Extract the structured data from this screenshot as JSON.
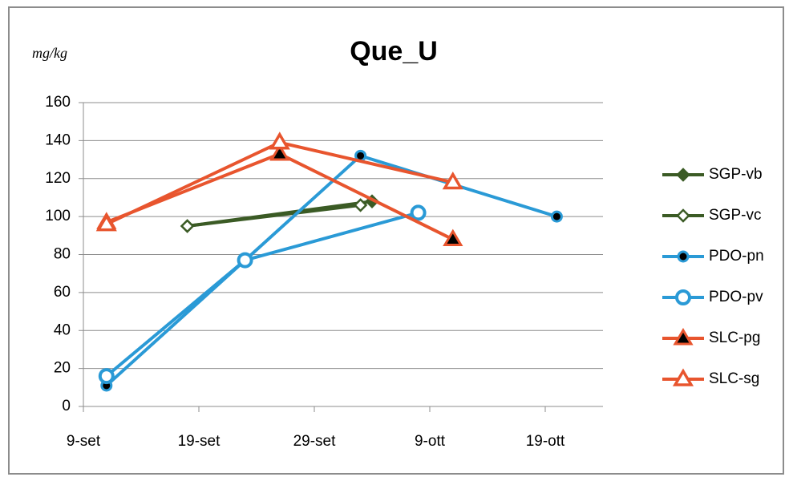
{
  "chart_data": {
    "type": "line",
    "title": "Que_U",
    "y_label": "mg/kg",
    "xlim": [
      9,
      54
    ],
    "xticks": [
      {
        "value": 9,
        "label": "9-set"
      },
      {
        "value": 19,
        "label": "19-set"
      },
      {
        "value": 29,
        "label": "29-set"
      },
      {
        "value": 39,
        "label": "9-ott"
      },
      {
        "value": 49,
        "label": "19-ott"
      }
    ],
    "ylim": [
      0,
      160
    ],
    "yticks": [
      0,
      20,
      40,
      60,
      80,
      100,
      120,
      140,
      160
    ],
    "grid": true,
    "legend": "right",
    "series": [
      {
        "name": "SGP-vb",
        "color": "#3b5b25",
        "marker": "diamond",
        "filled": true,
        "x": [
          18,
          34
        ],
        "values": [
          95,
          108
        ]
      },
      {
        "name": "SGP-vc",
        "color": "#3b5b25",
        "marker": "diamond",
        "filled": false,
        "x": [
          18,
          33
        ],
        "values": [
          95,
          106
        ]
      },
      {
        "name": "PDO-pn",
        "color": "#2a9ad6",
        "marker": "circle",
        "filled": true,
        "x": [
          11,
          23,
          33,
          50
        ],
        "values": [
          11,
          77,
          132,
          100
        ]
      },
      {
        "name": "PDO-pv",
        "color": "#2a9ad6",
        "marker": "circle",
        "filled": false,
        "x": [
          11,
          23,
          38
        ],
        "values": [
          16,
          77,
          102
        ]
      },
      {
        "name": "SLC-pg",
        "color": "#e8552e",
        "marker": "triangle",
        "filled": true,
        "x": [
          11,
          26,
          41
        ],
        "values": [
          97,
          133,
          88
        ]
      },
      {
        "name": "SLC-sg",
        "color": "#e8552e",
        "marker": "triangle",
        "filled": false,
        "x": [
          11,
          26,
          41
        ],
        "values": [
          96,
          139,
          118
        ]
      }
    ]
  }
}
